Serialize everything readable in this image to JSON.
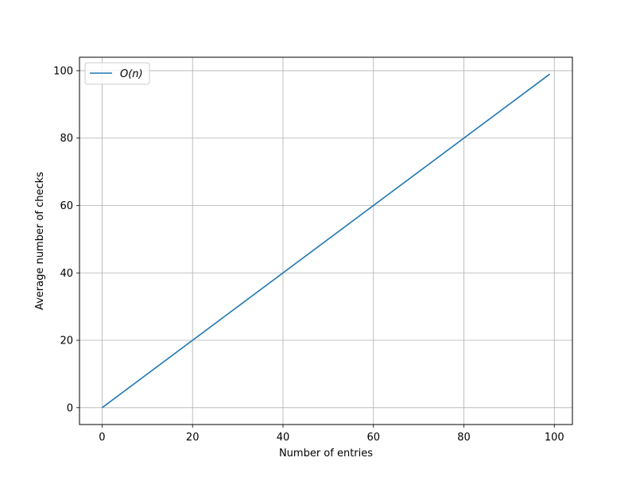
{
  "chart_data": {
    "type": "line",
    "title": "",
    "xlabel": "Number of entries",
    "ylabel": "Average number of checks",
    "xlim": [
      -5,
      104
    ],
    "ylim": [
      -5,
      104
    ],
    "xticks": [
      0,
      20,
      40,
      60,
      80,
      100
    ],
    "yticks": [
      0,
      20,
      40,
      60,
      80,
      100
    ],
    "x_tick_labels": [
      "0",
      "20",
      "40",
      "60",
      "80",
      "100"
    ],
    "y_tick_labels": [
      "0",
      "20",
      "40",
      "60",
      "80",
      "100"
    ],
    "grid": true,
    "legend_placement": "top-left",
    "series": [
      {
        "name": "O(n)",
        "color": "#1f77b4",
        "x": [
          0,
          99
        ],
        "y": [
          0,
          99
        ]
      }
    ]
  }
}
